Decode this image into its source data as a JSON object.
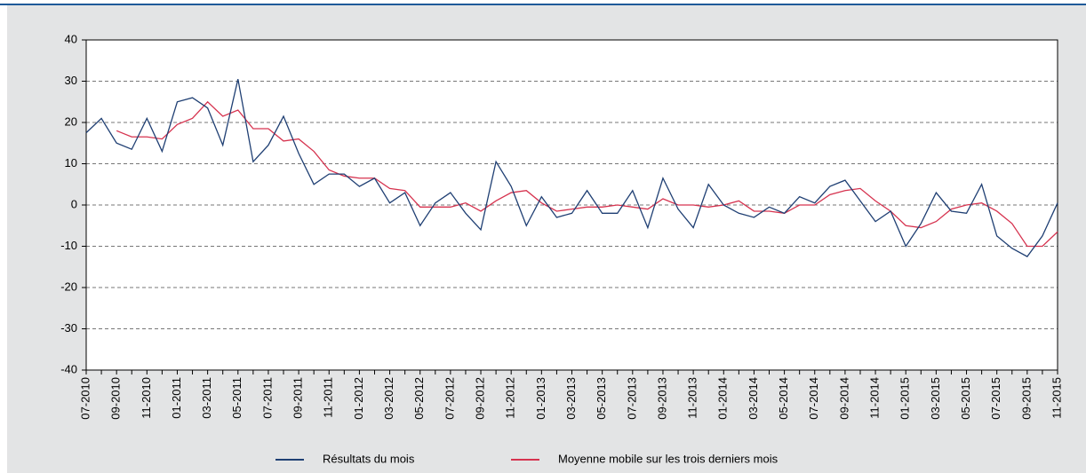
{
  "chart_data": {
    "type": "line",
    "categories": [
      "07-2010",
      null,
      "09-2010",
      null,
      "11-2010",
      null,
      "01-2011",
      null,
      "03-2011",
      null,
      "05-2011",
      null,
      "07-2011",
      null,
      "09-2011",
      null,
      "11-2011",
      null,
      "01-2012",
      null,
      "03-2012",
      null,
      "05-2012",
      null,
      "07-2012",
      null,
      "09-2012",
      null,
      "11-2012",
      null,
      "01-2013",
      null,
      "03-2013",
      null,
      "05-2013",
      null,
      "07-2013",
      null,
      "09-2013",
      null,
      "11-2013",
      null,
      "01-2014",
      null,
      "03-2014",
      null,
      "05-2014",
      null,
      "07-2014",
      null,
      "09-2014",
      null,
      "11-2014",
      null,
      "01-2015",
      null,
      "03-2015",
      null,
      "05-2015",
      null,
      "07-2015",
      null,
      "09-2015",
      null,
      "11-2015"
    ],
    "series": [
      {
        "name": "Résultats du mois",
        "color": "#1f3f73",
        "values": [
          17.5,
          21,
          15,
          13.5,
          21,
          13,
          25,
          26,
          23.5,
          14.5,
          30.5,
          10.5,
          14.5,
          21.5,
          12.5,
          5,
          7.5,
          7.5,
          4.5,
          6.5,
          0.5,
          3,
          -5,
          0.5,
          3,
          -2,
          -6,
          10.5,
          4.5,
          -5,
          2,
          -3,
          -2,
          3.5,
          -2,
          -2,
          3.5,
          -5.5,
          6.5,
          -1,
          -5.5,
          5,
          0,
          -2,
          -3,
          -0.5,
          -2,
          2,
          0.5,
          4.5,
          6,
          1,
          -4,
          -1.5,
          -10,
          -4.5,
          3,
          -1.5,
          -2,
          5,
          -7.5,
          -10.5,
          -12.5,
          -7.5,
          0.5
        ]
      },
      {
        "name": "Moyenne mobile sur les trois derniers mois",
        "color": "#d6334f",
        "values": [
          null,
          null,
          18,
          16.5,
          16.5,
          16,
          19.5,
          21,
          25,
          21.5,
          23,
          18.5,
          18.5,
          15.5,
          16,
          13,
          8.5,
          7,
          6.5,
          6.5,
          4,
          3.5,
          -0.5,
          -0.5,
          -0.5,
          0.5,
          -1.5,
          1,
          3,
          3.5,
          0.5,
          -1.5,
          -1,
          -0.5,
          -0.5,
          0,
          -0.5,
          -1,
          1.5,
          0,
          0,
          -0.5,
          0,
          1,
          -1.5,
          -1.5,
          -2,
          0,
          0,
          2.5,
          3.5,
          4,
          1,
          -1.5,
          -5,
          -5.5,
          -4,
          -1,
          0,
          0.5,
          -1.5,
          -4.5,
          -10,
          -10,
          -6.5
        ]
      }
    ],
    "ylim": [
      -40,
      40
    ],
    "yticks": [
      -40,
      -30,
      -20,
      -10,
      0,
      10,
      20,
      30,
      40
    ],
    "grid": true
  }
}
